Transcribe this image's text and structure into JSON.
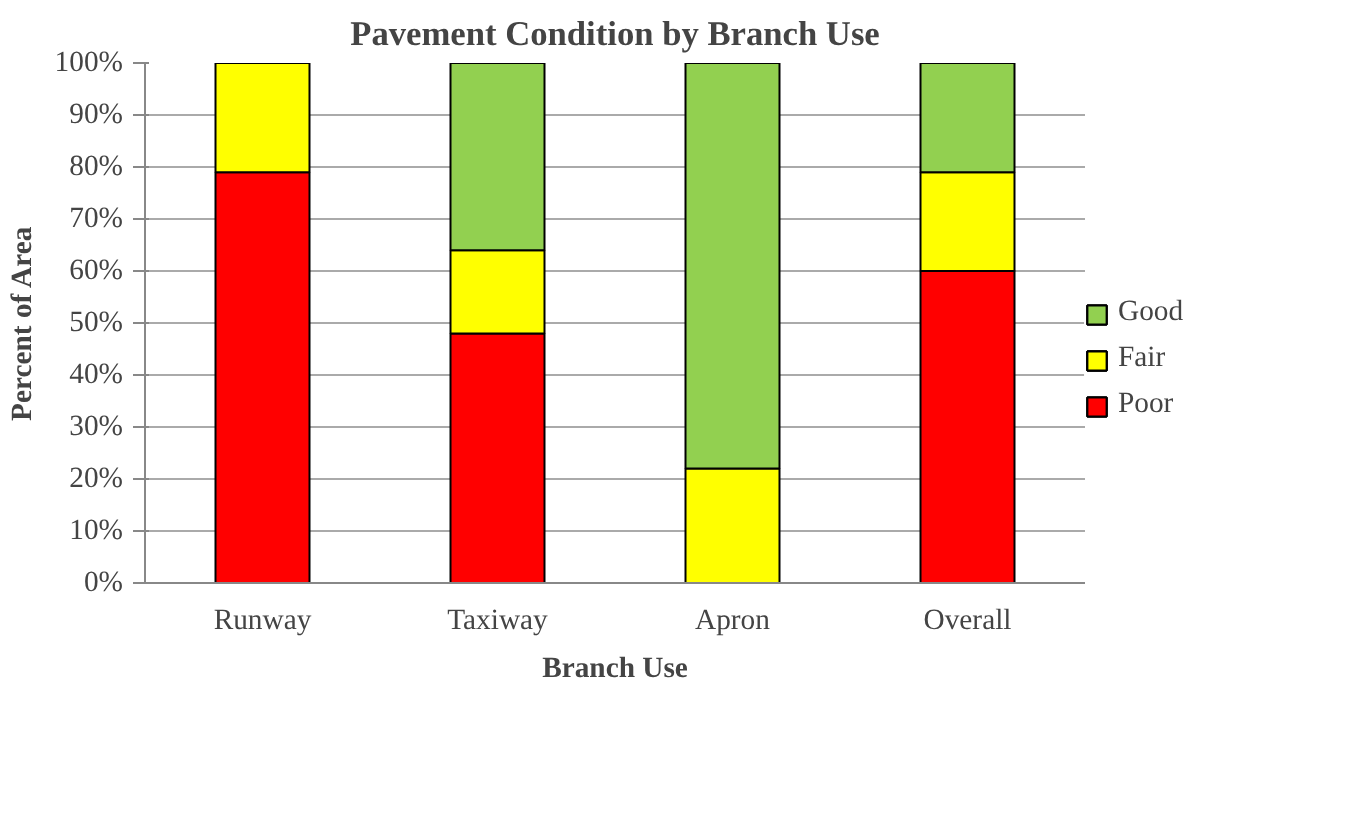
{
  "chart_data": {
    "type": "bar",
    "title": "Pavement Condition by Branch Use",
    "xlabel": "Branch Use",
    "ylabel": "Percent of Area",
    "categories": [
      "Runway",
      "Taxiway",
      "Apron",
      "Overall"
    ],
    "stacked": true,
    "series": [
      {
        "name": "Poor",
        "color": "#ff0000",
        "values": [
          79,
          48,
          null,
          60
        ]
      },
      {
        "name": "Fair",
        "color": "#ffff00",
        "values": [
          21,
          16,
          22,
          19
        ]
      },
      {
        "name": "Good",
        "color": "#92d050",
        "values": [
          null,
          36,
          78,
          21
        ]
      }
    ],
    "ylim": [
      0,
      100
    ],
    "yticks": [
      {
        "value": 0,
        "label": "0%"
      },
      {
        "value": 10,
        "label": "10%"
      },
      {
        "value": 20,
        "label": "20%"
      },
      {
        "value": 30,
        "label": "30%"
      },
      {
        "value": 40,
        "label": "40%"
      },
      {
        "value": 50,
        "label": "50%"
      },
      {
        "value": 60,
        "label": "60%"
      },
      {
        "value": 70,
        "label": "70%"
      },
      {
        "value": 80,
        "label": "80%"
      },
      {
        "value": 90,
        "label": "90%"
      },
      {
        "value": 100,
        "label": "100%"
      }
    ],
    "grid": "y",
    "legend": "right"
  }
}
